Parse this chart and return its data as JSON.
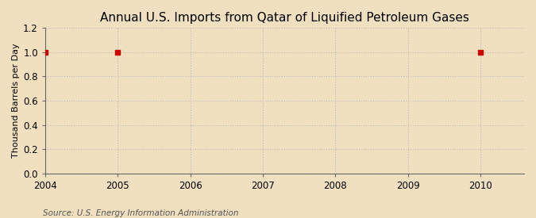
{
  "title": "Annual U.S. Imports from Qatar of Liquified Petroleum Gases",
  "ylabel": "Thousand Barrels per Day",
  "source": "Source: U.S. Energy Information Administration",
  "background_color": "#f0e0c0",
  "plot_background_color": "#f0e0c0",
  "x_data": [
    2004,
    2005,
    2010
  ],
  "y_data": [
    1.0,
    1.0,
    1.0
  ],
  "xlim": [
    2004,
    2010.6
  ],
  "ylim": [
    0.0,
    1.2
  ],
  "xticks": [
    2004,
    2005,
    2006,
    2007,
    2008,
    2009,
    2010
  ],
  "yticks": [
    0.0,
    0.2,
    0.4,
    0.6,
    0.8,
    1.0,
    1.2
  ],
  "marker_color": "#cc0000",
  "marker_style": "s",
  "marker_size": 4,
  "grid_color": "#bbbbbb",
  "grid_linestyle": ":",
  "title_fontsize": 11,
  "label_fontsize": 8,
  "tick_fontsize": 8.5,
  "source_fontsize": 7.5
}
